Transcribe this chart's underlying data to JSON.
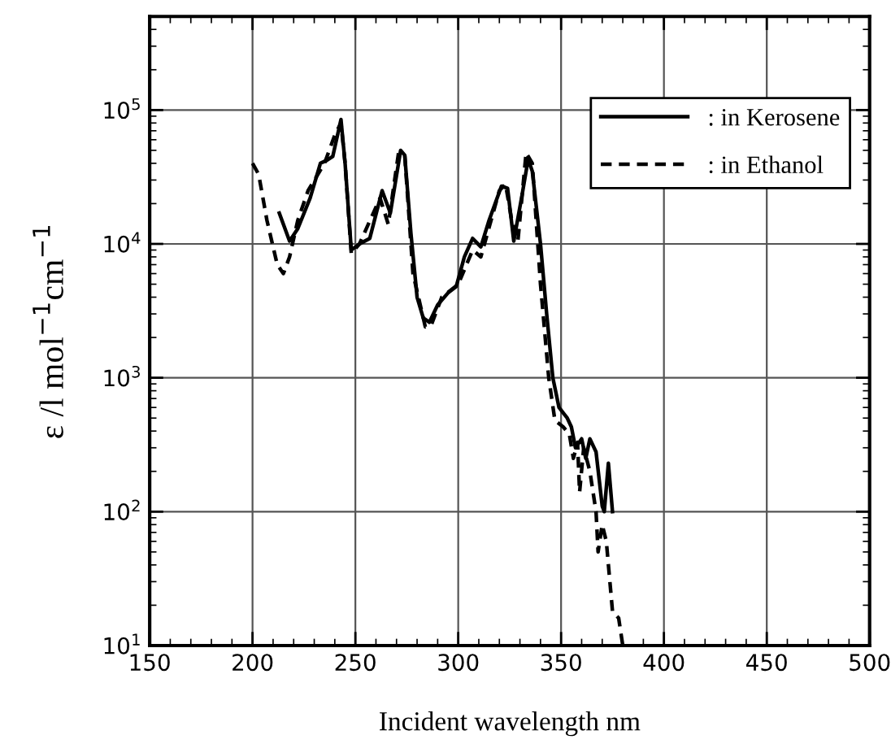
{
  "chart_data": {
    "type": "line",
    "xlabel": "Incident wavelength nm",
    "ylabel": "ε /l mol$^{−1}$cm$^{−1}$",
    "log": "y",
    "grid": true,
    "legend": "top right",
    "xlim": [
      150,
      500
    ],
    "xticks": [
      150,
      200,
      250,
      300,
      350,
      400,
      450,
      500
    ],
    "ylim": [
      10,
      500000
    ],
    "yticks": [
      {
        "value": 10,
        "label": "10$^{1}$"
      },
      {
        "value": 100,
        "label": "10$^{2}$"
      },
      {
        "value": 1000,
        "label": "10$^{3}$"
      },
      {
        "value": 10000,
        "label": "10$^{4}$"
      },
      {
        "value": 100000,
        "label": "10$^{5}$"
      }
    ],
    "series": [
      {
        "name": ": in Kerosene",
        "color": "#000000",
        "line_style": "solid",
        "x": [
          213,
          218,
          222,
          228,
          233,
          236,
          239,
          243,
          245,
          248,
          252,
          257,
          263,
          267,
          272,
          274,
          277,
          280,
          283,
          286,
          290,
          295,
          299,
          303,
          307,
          311,
          315,
          321,
          324,
          327,
          331,
          334,
          336,
          340,
          343,
          346,
          349,
          353,
          355,
          357,
          360,
          362,
          364,
          367,
          370,
          371,
          373,
          375
        ],
        "values": [
          17000,
          10500,
          13000,
          22000,
          40000,
          42000,
          45000,
          85000,
          40000,
          9000,
          10000,
          11000,
          25000,
          17000,
          50000,
          46000,
          12000,
          4000,
          2800,
          2600,
          3500,
          4300,
          4800,
          8000,
          11000,
          9500,
          15000,
          27000,
          26000,
          10500,
          23000,
          43000,
          35000,
          10000,
          3000,
          1000,
          600,
          500,
          430,
          300,
          350,
          250,
          350,
          280,
          110,
          100,
          230,
          100
        ]
      },
      {
        "name": ": in Ethanol",
        "color": "#000000",
        "line_style": "dashed",
        "x": [
          200,
          203,
          207,
          212,
          215,
          218,
          222,
          227,
          235,
          240,
          243,
          245,
          248,
          252,
          262,
          266,
          271,
          274,
          278,
          284,
          287,
          292,
          300,
          307,
          311,
          320,
          323,
          326,
          329,
          333,
          336,
          340,
          344,
          347,
          351,
          354,
          356,
          358,
          359,
          361,
          364,
          367,
          368,
          370,
          372,
          375,
          378,
          380
        ],
        "values": [
          40000,
          33000,
          15000,
          7000,
          6000,
          8000,
          15000,
          25000,
          40000,
          65000,
          80000,
          40000,
          8500,
          10000,
          22000,
          14000,
          48000,
          46000,
          6000,
          2400,
          2500,
          4000,
          5000,
          9000,
          8000,
          25000,
          28000,
          15000,
          10500,
          48000,
          40000,
          5000,
          1000,
          480,
          430,
          380,
          250,
          330,
          140,
          300,
          200,
          100,
          50,
          80,
          60,
          18,
          16,
          10
        ]
      }
    ]
  }
}
